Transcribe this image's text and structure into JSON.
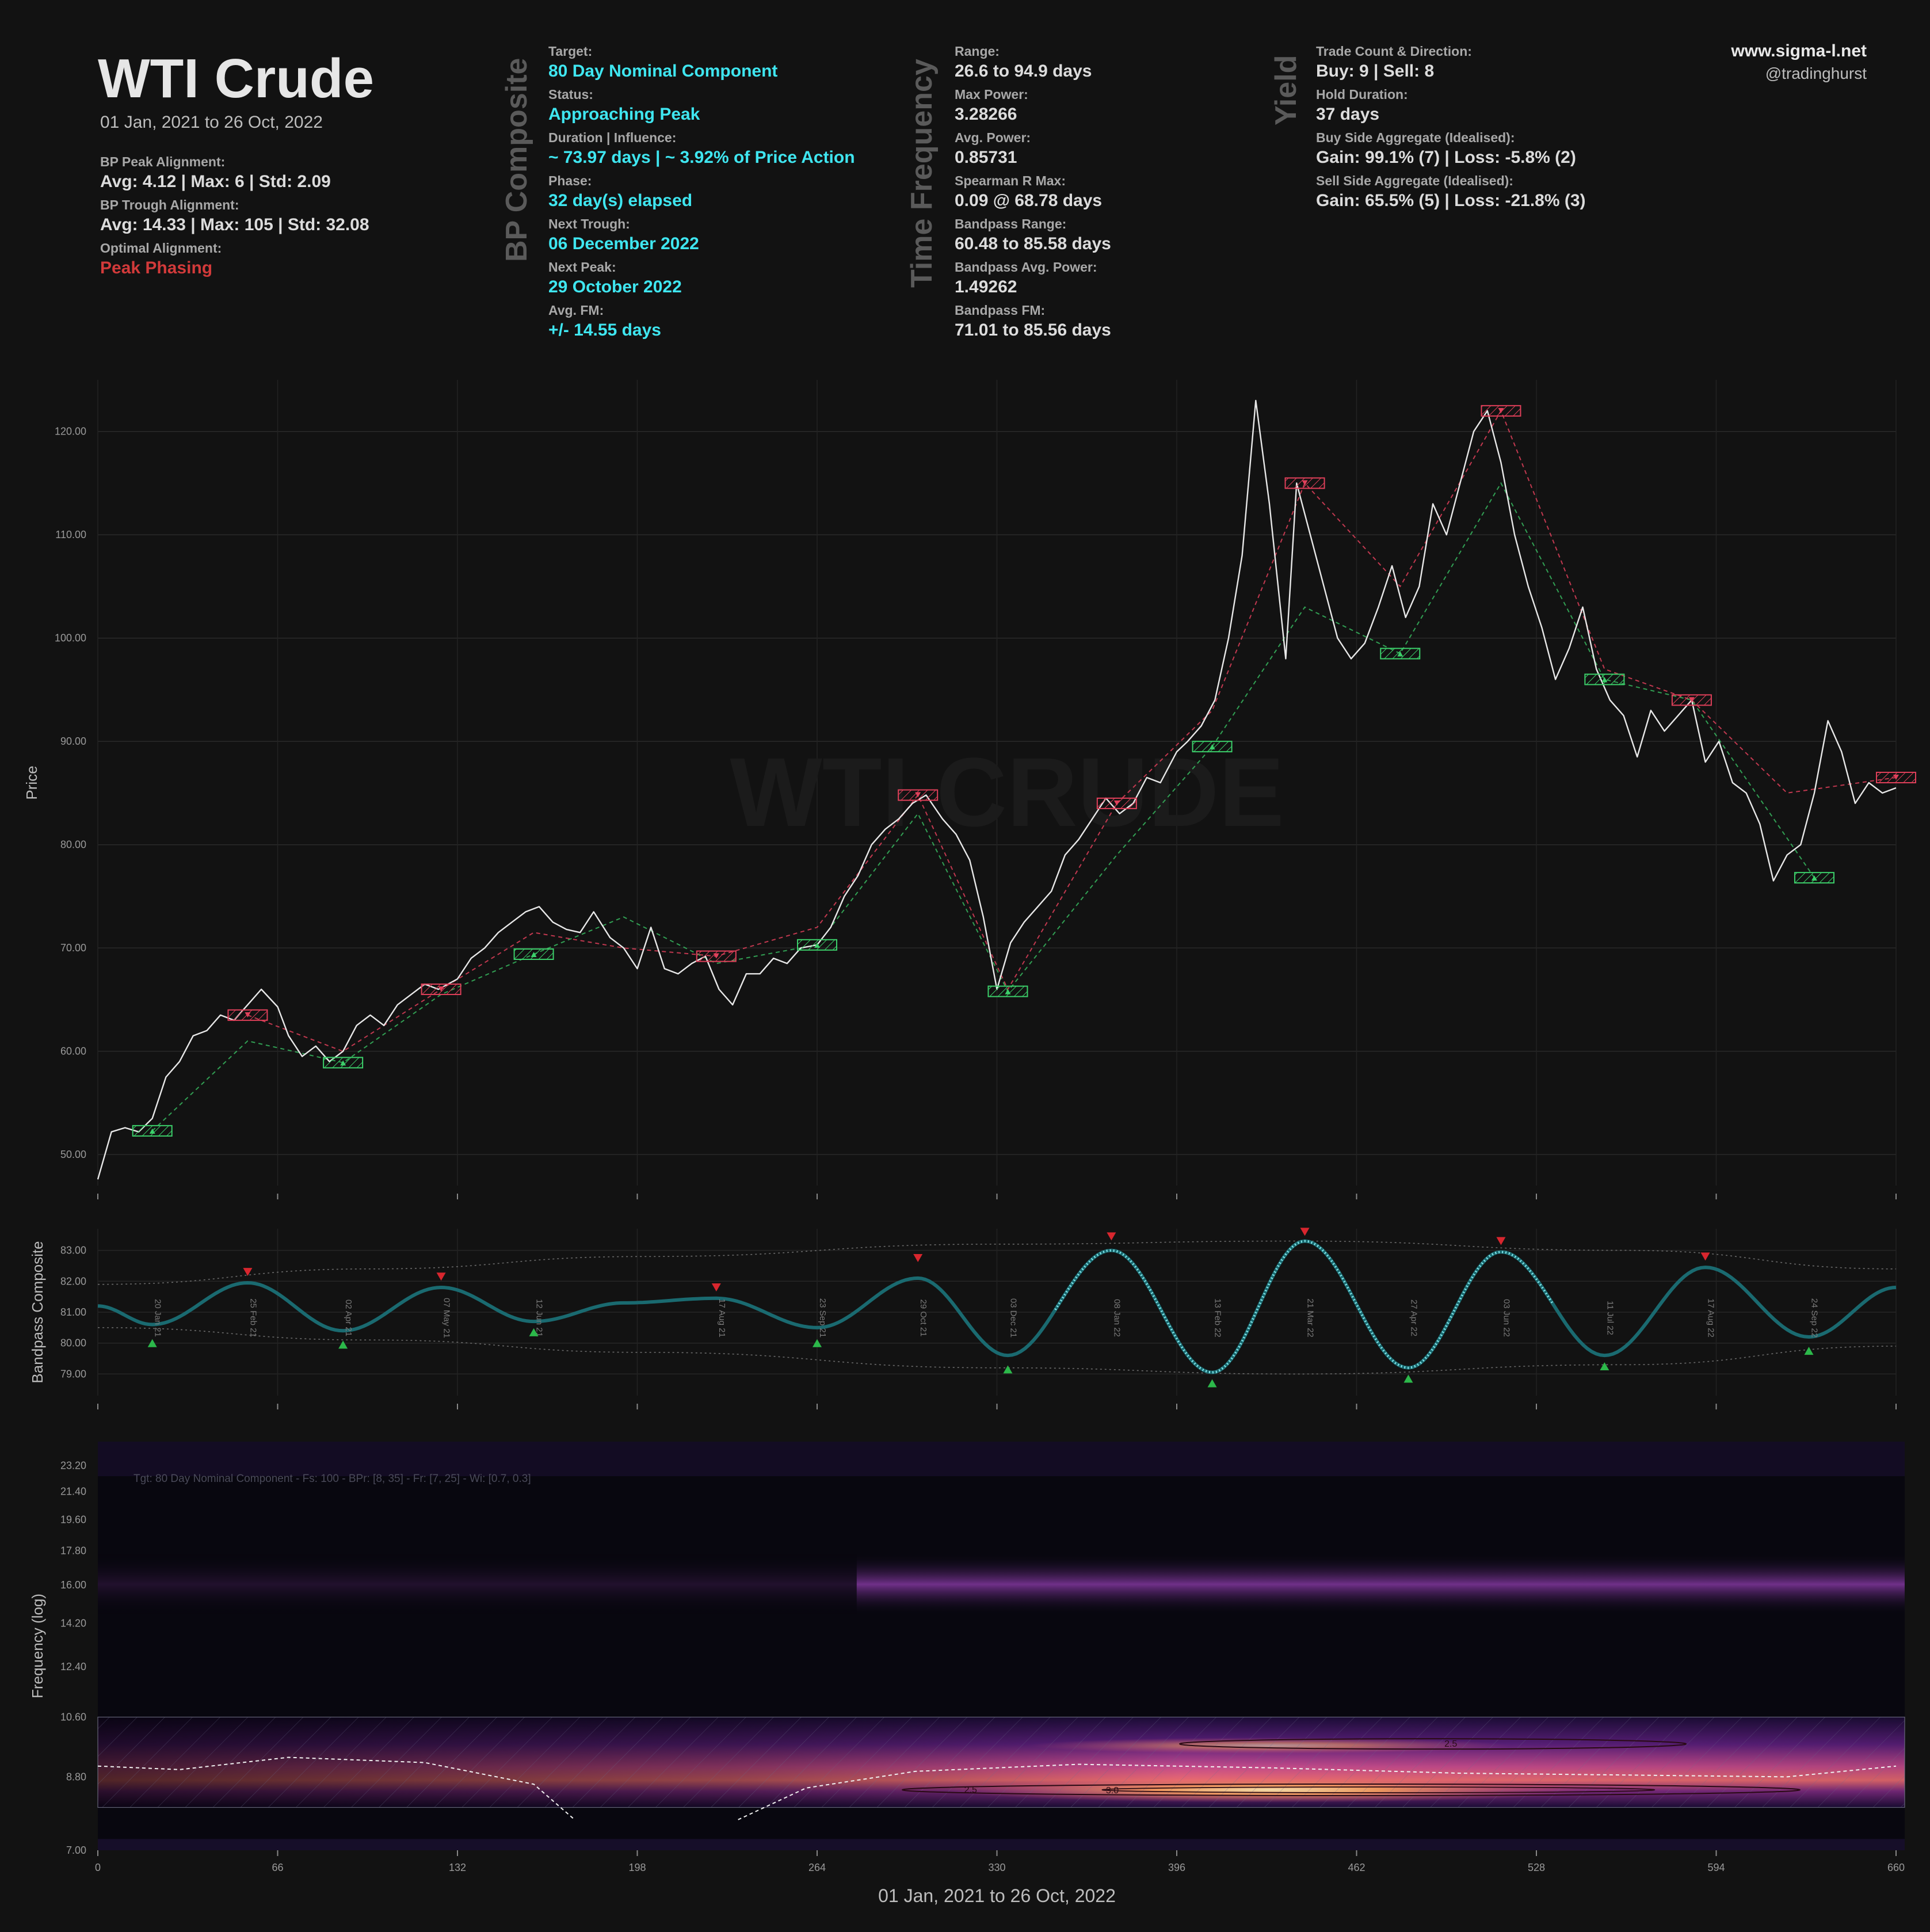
{
  "header": {
    "title": "WTI Crude",
    "subtitle": "01 Jan, 2021 to 26 Oct, 2022",
    "website": "www.sigma-l.net",
    "handle": "@tradinghurst"
  },
  "stats_left": [
    {
      "label": "BP Peak Alignment:",
      "value": "Avg: 4.12 | Max: 6 | Std: 2.09"
    },
    {
      "label": "BP Trough Alignment:",
      "value": "Avg: 14.33 | Max: 105 | Std: 32.08"
    },
    {
      "label": "Optimal Alignment:",
      "value": "Peak Phasing"
    }
  ],
  "section_titles": {
    "bp": "BP Composite",
    "tf": "Time Frequency",
    "yield": "Yield"
  },
  "bp_composite": [
    {
      "label": "Target:",
      "value": "80 Day Nominal Component"
    },
    {
      "label": "Status:",
      "value": "Approaching Peak"
    },
    {
      "label": "Duration | Influence:",
      "value": "~ 73.97 days | ~ 3.92% of Price Action"
    },
    {
      "label": "Phase:",
      "value": "32 day(s) elapsed"
    },
    {
      "label": "Next Trough:",
      "value": "06 December 2022"
    },
    {
      "label": "Next Peak:",
      "value": "29 October 2022"
    },
    {
      "label": "Avg. FM:",
      "value": "+/- 14.55 days"
    }
  ],
  "time_frequency": [
    {
      "label": "Range:",
      "value": "26.6 to 94.9 days"
    },
    {
      "label": "Max Power:",
      "value": "3.28266"
    },
    {
      "label": "Avg. Power:",
      "value": "0.85731"
    },
    {
      "label": "Spearman R Max:",
      "value": "0.09 @ 68.78 days"
    },
    {
      "label": "Bandpass Range:",
      "value": "60.48 to 85.58 days"
    },
    {
      "label": "Bandpass Avg. Power:",
      "value": "1.49262"
    },
    {
      "label": "Bandpass FM:",
      "value": "71.01 to 85.56 days"
    }
  ],
  "yield": [
    {
      "label": "Trade Count & Direction:",
      "value": "Buy: 9 | Sell: 8"
    },
    {
      "label": "Hold Duration:",
      "value": "37 days"
    },
    {
      "label": "Buy Side Aggregate (Idealised):",
      "value": "Gain: 99.1% (7) | Loss: -5.8% (2)"
    },
    {
      "label": "Sell Side Aggregate (Idealised):",
      "value": "Gain: 65.5% (5) | Loss: -21.8% (3)"
    }
  ],
  "colors": {
    "background": "#121212",
    "price": "#e8e8e8",
    "peak": "#e0405a",
    "trough": "#3ccf6a",
    "bandpass": "#1a6a70",
    "accent": "#3fe6f0"
  },
  "chart_data": [
    {
      "type": "line",
      "ylabel": "Price",
      "watermark": "WTI CRUDE",
      "ylim": [
        47,
        125
      ],
      "xlim": [
        0,
        660
      ],
      "yticks": [
        "120.00",
        "110.00",
        "100.00",
        "90.00",
        "80.00",
        "70.00",
        "60.00",
        "50.00"
      ],
      "ytick_values": [
        120,
        110,
        100,
        90,
        80,
        70,
        60,
        50
      ],
      "x": [
        0,
        5,
        10,
        15,
        20,
        25,
        30,
        35,
        40,
        45,
        50,
        55,
        60,
        66,
        70,
        75,
        80,
        85,
        90,
        95,
        100,
        105,
        110,
        115,
        120,
        125,
        132,
        137,
        142,
        147,
        152,
        157,
        162,
        167,
        172,
        177,
        182,
        188,
        193,
        198,
        203,
        208,
        213,
        218,
        223,
        228,
        233,
        238,
        243,
        248,
        253,
        258,
        264,
        269,
        274,
        279,
        284,
        289,
        294,
        299,
        304,
        310,
        315,
        320,
        325,
        330,
        335,
        340,
        345,
        350,
        355,
        360,
        365,
        370,
        375,
        380,
        385,
        390,
        396,
        400,
        405,
        410,
        415,
        420,
        425,
        430,
        436,
        440,
        445,
        450,
        455,
        460,
        465,
        470,
        475,
        480,
        485,
        490,
        495,
        500,
        505,
        510,
        515,
        520,
        525,
        530,
        535,
        540,
        545,
        550,
        555,
        560,
        565,
        570,
        575,
        580,
        585,
        590,
        595,
        600,
        605,
        610,
        615,
        620,
        625,
        630,
        635,
        640,
        645,
        650,
        655,
        660
      ],
      "y": [
        47.6,
        52.2,
        52.6,
        52.2,
        53.5,
        57.5,
        59.0,
        61.5,
        62.0,
        63.5,
        63.0,
        64.5,
        66.0,
        64.3,
        61.5,
        59.5,
        60.5,
        59.0,
        60.0,
        62.5,
        63.5,
        62.5,
        64.5,
        65.5,
        66.5,
        66.0,
        67.0,
        69.0,
        70.0,
        71.5,
        72.5,
        73.5,
        74.0,
        72.5,
        71.8,
        71.5,
        73.5,
        71.0,
        70.0,
        68.0,
        72.0,
        68.0,
        67.5,
        68.5,
        69.2,
        66.0,
        64.5,
        67.5,
        67.5,
        69.0,
        68.5,
        70.0,
        70.3,
        72.0,
        75.0,
        77.0,
        80.0,
        81.5,
        82.5,
        84.0,
        84.8,
        82.5,
        81.0,
        78.5,
        73.0,
        66.0,
        70.5,
        72.5,
        74.0,
        75.5,
        79.0,
        80.5,
        82.5,
        84.5,
        83.0,
        84.0,
        86.5,
        86.0,
        89.0,
        90.0,
        91.5,
        94.0,
        100.0,
        108.0,
        123.0,
        113.0,
        98.0,
        115.0,
        110.0,
        105.0,
        100.0,
        98.0,
        99.5,
        103.0,
        107.0,
        102.0,
        105.0,
        113.0,
        110.0,
        115.0,
        120.0,
        122.0,
        117.0,
        110.0,
        105.0,
        101.0,
        96.0,
        99.0,
        103.0,
        97.0,
        94.0,
        92.5,
        88.5,
        93.0,
        91.0,
        92.5,
        94.0,
        88.0,
        90.0,
        86.0,
        85.0,
        82.0,
        76.5,
        79.0,
        80.0,
        85.0,
        92.0,
        89.0,
        84.0,
        86.0,
        85.0,
        85.5
      ],
      "peaks": [
        {
          "x": 55,
          "y": 63.5
        },
        {
          "x": 126,
          "y": 66.0
        },
        {
          "x": 227,
          "y": 69.2
        },
        {
          "x": 301,
          "y": 84.8
        },
        {
          "x": 374,
          "y": 84.0
        },
        {
          "x": 443,
          "y": 115.0
        },
        {
          "x": 515,
          "y": 122.0
        },
        {
          "x": 585,
          "y": 94.0
        },
        {
          "x": 660,
          "y": 86.5
        }
      ],
      "troughs": [
        {
          "x": 20,
          "y": 52.3
        },
        {
          "x": 90,
          "y": 58.9
        },
        {
          "x": 160,
          "y": 69.4
        },
        {
          "x": 264,
          "y": 70.3
        },
        {
          "x": 334,
          "y": 65.8
        },
        {
          "x": 409,
          "y": 89.5
        },
        {
          "x": 478,
          "y": 98.5
        },
        {
          "x": 553,
          "y": 96.0
        },
        {
          "x": 630,
          "y": 76.8
        }
      ],
      "peak_path": [
        [
          55,
          63.5
        ],
        [
          90,
          60
        ],
        [
          126,
          66
        ],
        [
          160,
          71.5
        ],
        [
          193,
          70
        ],
        [
          227,
          69.2
        ],
        [
          264,
          72
        ],
        [
          301,
          84.8
        ],
        [
          334,
          66
        ],
        [
          374,
          84
        ],
        [
          409,
          93
        ],
        [
          443,
          115
        ],
        [
          478,
          105
        ],
        [
          515,
          122
        ],
        [
          553,
          97
        ],
        [
          585,
          94
        ],
        [
          620,
          85
        ],
        [
          660,
          86.5
        ]
      ],
      "trough_path": [
        [
          20,
          52.3
        ],
        [
          55,
          61
        ],
        [
          90,
          58.9
        ],
        [
          126,
          65.5
        ],
        [
          160,
          69.4
        ],
        [
          193,
          73
        ],
        [
          227,
          68.5
        ],
        [
          264,
          70.3
        ],
        [
          301,
          83
        ],
        [
          334,
          65.8
        ],
        [
          374,
          79
        ],
        [
          409,
          89.5
        ],
        [
          443,
          103
        ],
        [
          478,
          98.5
        ],
        [
          515,
          115
        ],
        [
          553,
          96
        ],
        [
          585,
          94
        ],
        [
          630,
          76.8
        ]
      ]
    },
    {
      "type": "line",
      "ylabel": "Bandpass Composite",
      "ylim": [
        78.3,
        83.7
      ],
      "xlim": [
        0,
        660
      ],
      "yticks": [
        "83.00",
        "82.00",
        "81.00",
        "80.00",
        "79.00"
      ],
      "ytick_values": [
        83,
        82,
        81,
        80,
        79
      ],
      "cycle_extrema": [
        {
          "x": 0,
          "y": 81.2
        },
        {
          "x": 20,
          "y": 80.6
        },
        {
          "x": 55,
          "y": 81.95
        },
        {
          "x": 90,
          "y": 80.4
        },
        {
          "x": 126,
          "y": 81.8
        },
        {
          "x": 160,
          "y": 80.7
        },
        {
          "x": 193,
          "y": 81.3
        },
        {
          "x": 227,
          "y": 81.45
        },
        {
          "x": 264,
          "y": 80.5
        },
        {
          "x": 301,
          "y": 82.1
        },
        {
          "x": 334,
          "y": 79.6
        },
        {
          "x": 372,
          "y": 83.0
        },
        {
          "x": 409,
          "y": 79.05
        },
        {
          "x": 443,
          "y": 83.3
        },
        {
          "x": 481,
          "y": 79.2
        },
        {
          "x": 515,
          "y": 82.95
        },
        {
          "x": 553,
          "y": 79.6
        },
        {
          "x": 590,
          "y": 82.45
        },
        {
          "x": 628,
          "y": 80.2
        },
        {
          "x": 660,
          "y": 81.8
        }
      ],
      "cycle_labels": [
        {
          "x": 20,
          "text": "20 Jan 21"
        },
        {
          "x": 55,
          "text": "25 Feb 21"
        },
        {
          "x": 90,
          "text": "02 Apr 21"
        },
        {
          "x": 126,
          "text": "07 May 21"
        },
        {
          "x": 160,
          "text": "12 Jun 21"
        },
        {
          "x": 227,
          "text": "17 Aug 21"
        },
        {
          "x": 264,
          "text": "23 Sep 21"
        },
        {
          "x": 301,
          "text": "29 Oct 21"
        },
        {
          "x": 334,
          "text": "03 Dec 21"
        },
        {
          "x": 372,
          "text": "08 Jan 22"
        },
        {
          "x": 409,
          "text": "13 Feb 22"
        },
        {
          "x": 443,
          "text": "21 Mar 22"
        },
        {
          "x": 481,
          "text": "27 Apr 22"
        },
        {
          "x": 515,
          "text": "03 Jun 22"
        },
        {
          "x": 553,
          "text": "11 Jul 22"
        },
        {
          "x": 590,
          "text": "17 Aug 22"
        },
        {
          "x": 628,
          "text": "24 Sep 22"
        }
      ],
      "peak_markers": [
        {
          "x": 55,
          "y": 82.3
        },
        {
          "x": 126,
          "y": 82.15
        },
        {
          "x": 227,
          "y": 81.8
        },
        {
          "x": 301,
          "y": 82.75
        },
        {
          "x": 372,
          "y": 83.45
        },
        {
          "x": 443,
          "y": 83.6
        },
        {
          "x": 515,
          "y": 83.3
        },
        {
          "x": 590,
          "y": 82.8
        }
      ],
      "trough_markers": [
        {
          "x": 20,
          "y": 80.0
        },
        {
          "x": 90,
          "y": 79.95
        },
        {
          "x": 160,
          "y": 80.35
        },
        {
          "x": 264,
          "y": 80.0
        },
        {
          "x": 334,
          "y": 79.15
        },
        {
          "x": 409,
          "y": 78.7
        },
        {
          "x": 481,
          "y": 78.85
        },
        {
          "x": 553,
          "y": 79.25
        },
        {
          "x": 628,
          "y": 79.75
        }
      ],
      "envelope_upper": [
        [
          0,
          81.9
        ],
        [
          100,
          82.4
        ],
        [
          200,
          82.8
        ],
        [
          330,
          83.2
        ],
        [
          440,
          83.3
        ],
        [
          560,
          83.0
        ],
        [
          660,
          82.4
        ]
      ],
      "envelope_lower": [
        [
          0,
          80.5
        ],
        [
          100,
          80.1
        ],
        [
          200,
          79.7
        ],
        [
          330,
          79.2
        ],
        [
          440,
          79.0
        ],
        [
          560,
          79.3
        ],
        [
          660,
          79.9
        ]
      ]
    },
    {
      "type": "heatmap",
      "ylabel": "Frequency (log)",
      "xlabel": "01 Jan, 2021 to 26 Oct, 2022",
      "annotation": "Tgt: 80 Day Nominal Component - Fs: 100 - BPr: [8, 35] - Fr: [7, 25] - Wi: [0.7, 0.3]",
      "ylim": [
        7.0,
        25.0
      ],
      "xlim": [
        0,
        660
      ],
      "yticks": [
        "23.20",
        "21.40",
        "19.60",
        "17.80",
        "16.00",
        "14.20",
        "12.40",
        "10.60",
        "8.80",
        "7.00"
      ],
      "ytick_values": [
        23.2,
        21.4,
        19.6,
        17.8,
        16.0,
        14.2,
        12.4,
        10.6,
        8.8,
        7.0
      ],
      "xticks": [
        "0",
        "66",
        "132",
        "198",
        "264",
        "330",
        "396",
        "462",
        "528",
        "594",
        "660"
      ],
      "xtick_values": [
        0,
        66,
        132,
        198,
        264,
        330,
        396,
        462,
        528,
        594,
        660
      ],
      "bandpass_band": [
        8.0,
        10.6
      ],
      "contour_labels": [
        "2.5",
        "2.5",
        "3.0"
      ]
    }
  ]
}
